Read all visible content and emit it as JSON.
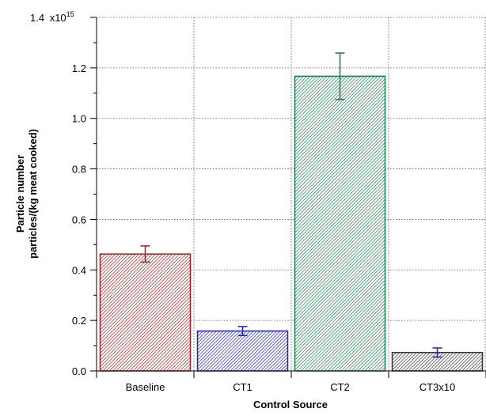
{
  "chart_data": {
    "type": "bar",
    "categories": [
      "Baseline",
      "CT1",
      "CT2",
      "CT3x10"
    ],
    "values": [
      0.463,
      0.158,
      1.167,
      0.073
    ],
    "errors": [
      0.032,
      0.018,
      0.092,
      0.018
    ],
    "value_scale_label": "x10",
    "value_scale_exponent": "15",
    "xlabel": "Control Source",
    "ylabel_line1": "Particle number",
    "ylabel_line2": "particles/(kg meat cooked)",
    "ylim": [
      0,
      1.4
    ],
    "yticks": [
      0.0,
      0.2,
      0.4,
      0.6,
      0.8,
      1.0,
      1.2
    ],
    "ytick_labels": [
      "0.0",
      "0.2",
      "0.4",
      "0.6",
      "0.8",
      "1.0",
      "1.2"
    ],
    "top_tick_label": "1.4",
    "grid": true,
    "colors": {
      "fills": [
        "#d99a9a",
        "#8c8ce0",
        "#8fd9b0",
        "#bfbfbf"
      ],
      "strokes": [
        "#9e1f1f",
        "#2323a8",
        "#1b7a4a",
        "#333333"
      ],
      "error_bars": [
        "#9e1f1f",
        "#2323a8",
        "#1b7a4a",
        "#2323a8"
      ]
    }
  }
}
